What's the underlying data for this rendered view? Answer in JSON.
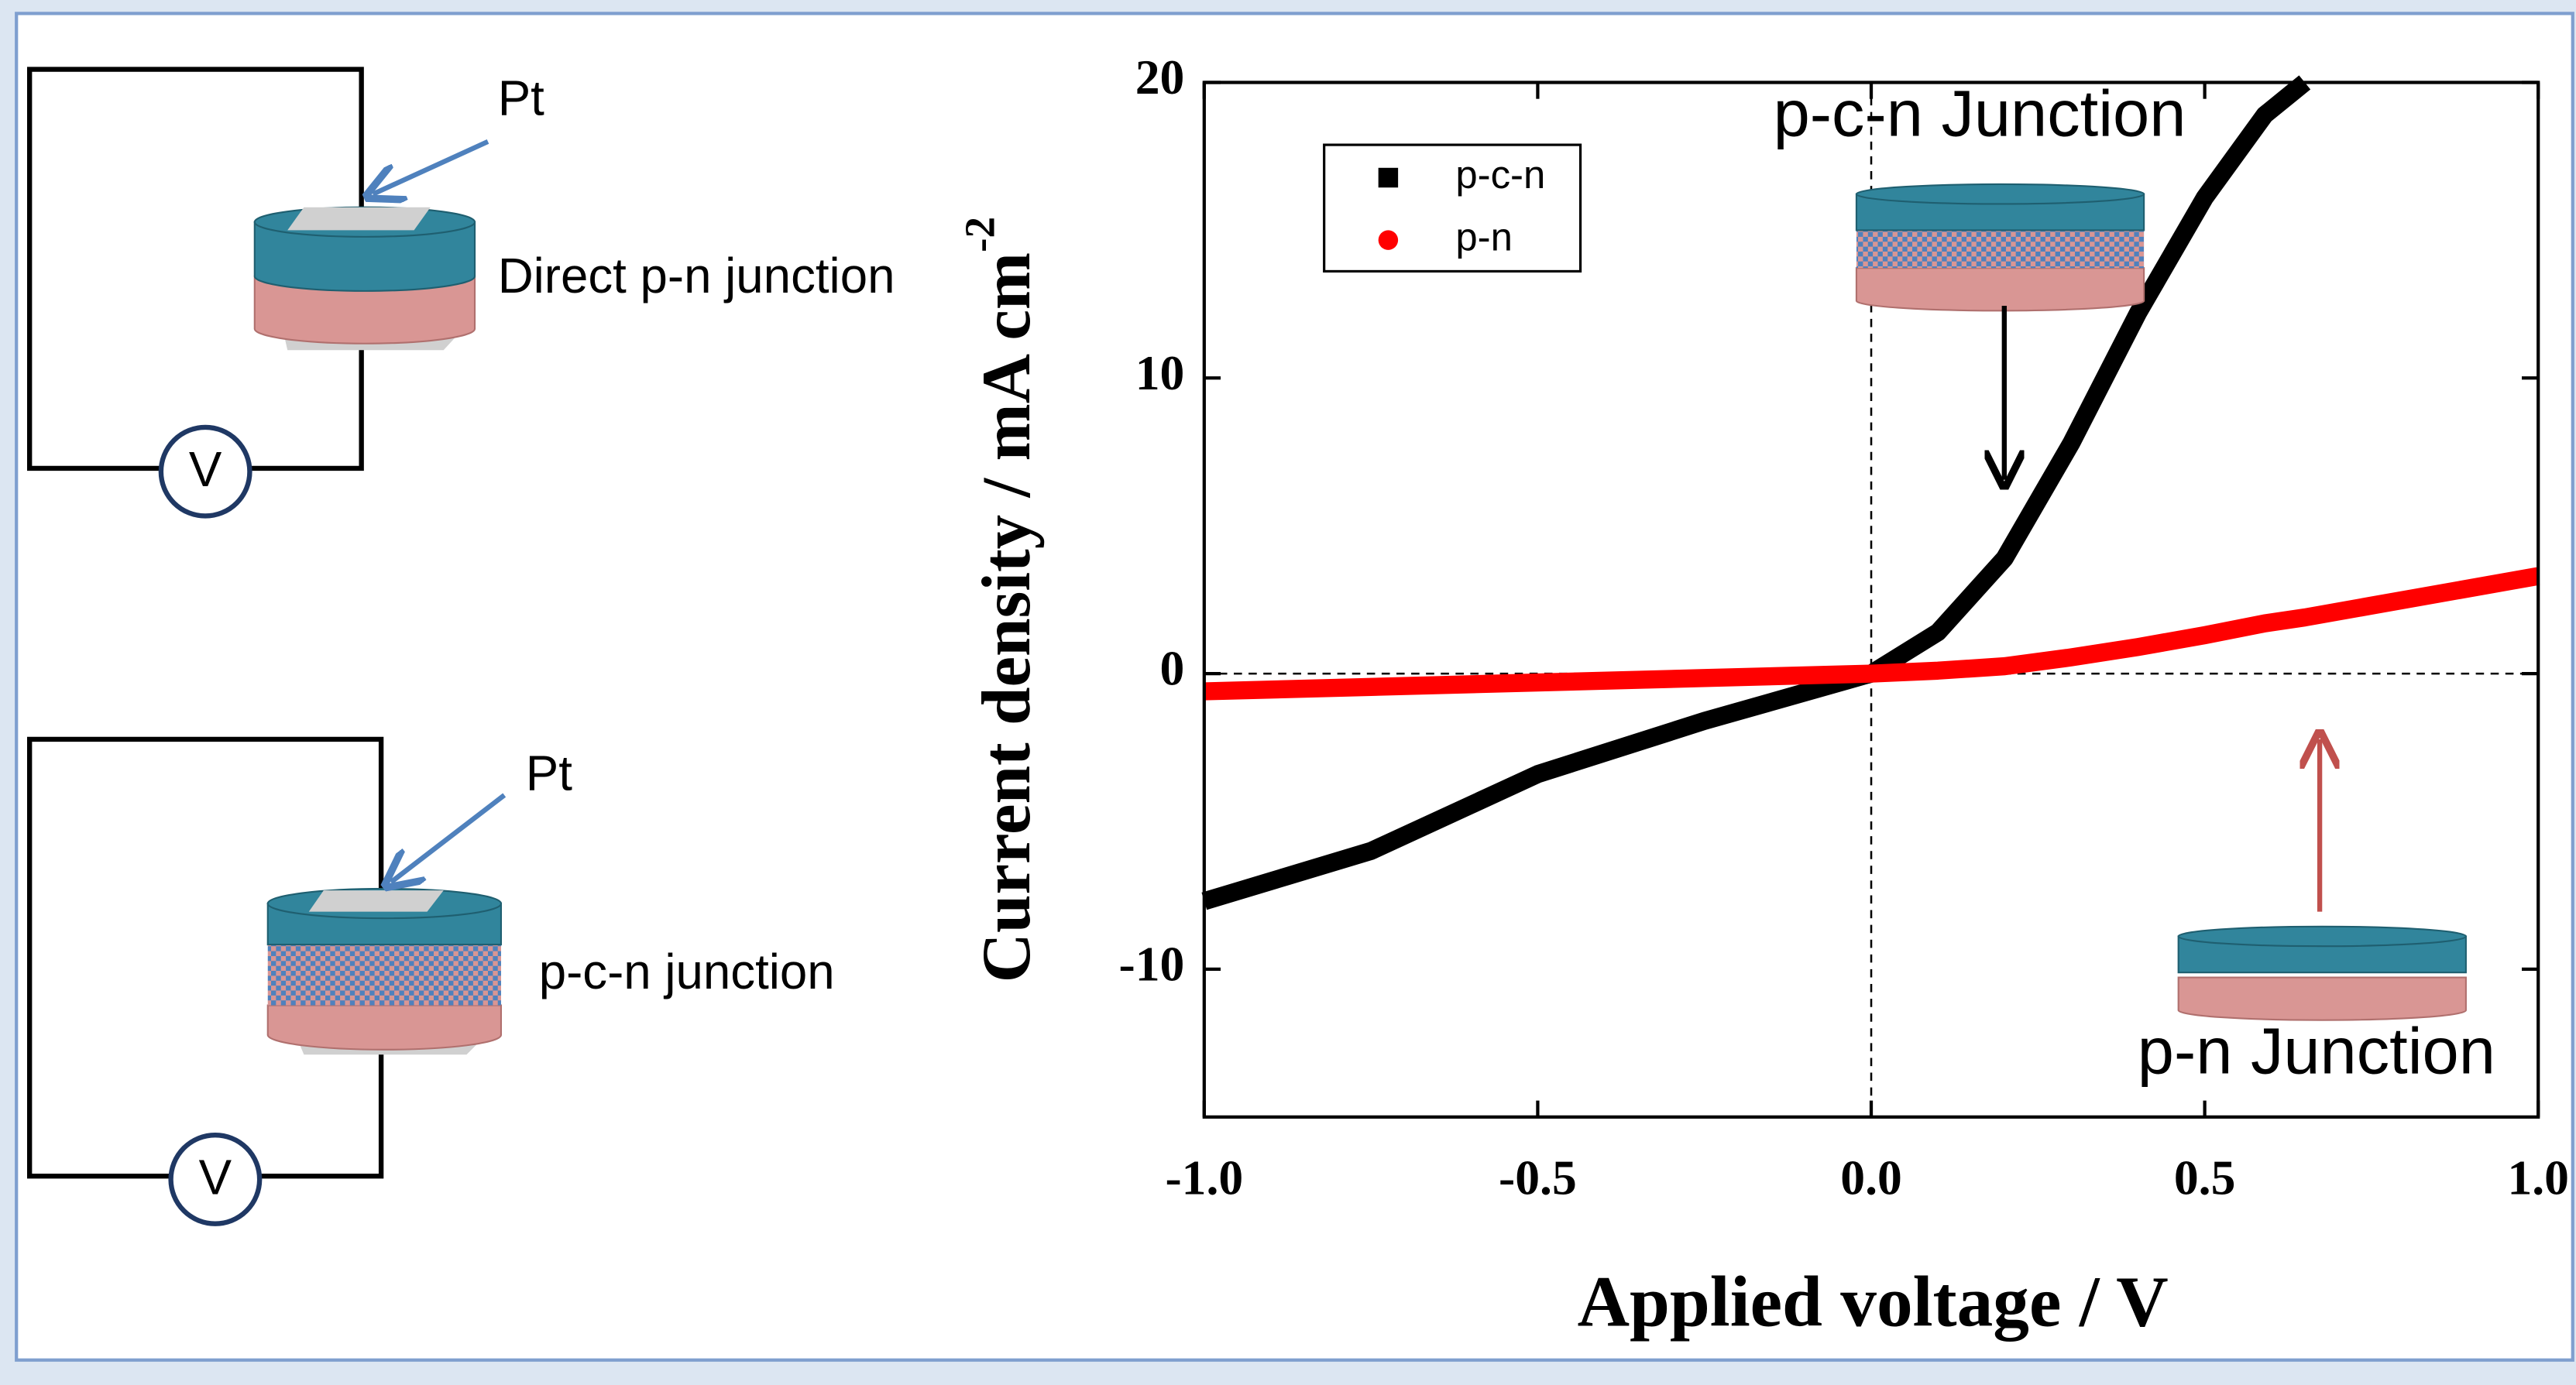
{
  "diagrams": {
    "top": {
      "pt_label": "Pt",
      "device_label": "Direct p-n junction",
      "meter_label": "V"
    },
    "bottom": {
      "pt_label": "Pt",
      "device_label": "p-c-n junction",
      "meter_label": "V"
    }
  },
  "chart_data": {
    "type": "line",
    "xlabel": "Applied voltage / V",
    "ylabel": "Current density / mA cm",
    "ylabel_superscript": "-2",
    "x": [
      -1.0,
      -0.75,
      -0.5,
      -0.25,
      0.0,
      0.1,
      0.2,
      0.3,
      0.4,
      0.5,
      0.59,
      0.65,
      0.75,
      1.0
    ],
    "series": [
      {
        "name": "p-c-n",
        "color": "#000000",
        "marker": "square",
        "values": [
          -7.7,
          -6.0,
          -3.4,
          -1.6,
          0.0,
          1.4,
          3.9,
          7.8,
          12.2,
          16.1,
          18.9,
          20.0,
          null,
          null
        ]
      },
      {
        "name": "p-n",
        "color": "#ff0000",
        "marker": "circle",
        "values": [
          -0.6,
          -0.45,
          -0.3,
          -0.15,
          0.0,
          0.1,
          0.25,
          0.55,
          0.9,
          1.3,
          1.7,
          1.9,
          2.3,
          3.3
        ]
      }
    ],
    "xlim": [
      -1.0,
      1.0
    ],
    "xticks": [
      {
        "value": -1.0,
        "label": "-1.0"
      },
      -0.5,
      {
        "value": 0.0,
        "label": "0.0"
      },
      0.5,
      {
        "value": 1.0,
        "label": "1.0"
      }
    ],
    "ylim": [
      -15,
      20
    ],
    "yticks": [
      -10,
      0,
      10,
      20
    ],
    "legend": "upper left",
    "annotations": [
      {
        "text": "p-c-n Junction"
      },
      {
        "text": "p-n Junction"
      }
    ]
  }
}
